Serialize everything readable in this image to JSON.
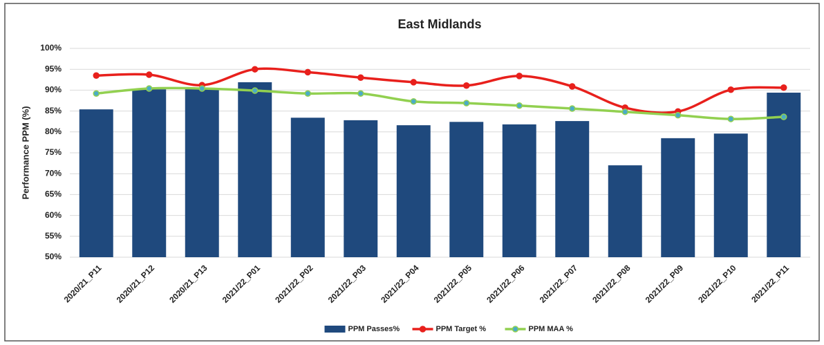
{
  "chart_data": {
    "type": "bar-line",
    "title": "East Midlands",
    "y_label": "Performance PPM (%)",
    "categories": [
      "2020/21_P11",
      "2020/21_P12",
      "2020/21_P13",
      "2021/22_P01",
      "2021/22_P02",
      "2021/22_P03",
      "2021/22_P04",
      "2021/22_P05",
      "2021/22_P06",
      "2021/22_P07",
      "2021/22_P08",
      "2021/22_P09",
      "2021/22_P10",
      "2021/22_P11"
    ],
    "series": [
      {
        "name": "PPM Passes%",
        "type": "bar",
        "color": "#1f497d",
        "values": [
          85.4,
          90.2,
          90.3,
          91.9,
          83.4,
          82.8,
          81.6,
          82.4,
          81.8,
          82.6,
          72.0,
          78.5,
          79.6,
          89.4
        ]
      },
      {
        "name": "PPM Target %",
        "type": "line",
        "color": "#e8201c",
        "marker_color": "#e8201c",
        "values": [
          93.5,
          93.7,
          91.2,
          95.0,
          94.3,
          93.0,
          91.9,
          91.1,
          93.4,
          90.9,
          85.8,
          84.9,
          90.1,
          90.6
        ]
      },
      {
        "name": "PPM MAA %",
        "type": "line",
        "color": "#92d050",
        "marker_color": "#4bacc6",
        "values": [
          89.2,
          90.4,
          90.4,
          89.9,
          89.2,
          89.2,
          87.3,
          86.9,
          86.3,
          85.6,
          84.8,
          84.0,
          83.1,
          83.6
        ]
      }
    ],
    "ylim": [
      50,
      100
    ],
    "yticks": [
      {
        "value": 50,
        "label": "50%"
      },
      {
        "value": 55,
        "label": "55%"
      },
      {
        "value": 60,
        "label": "60%"
      },
      {
        "value": 65,
        "label": "65%"
      },
      {
        "value": 70,
        "label": "70%"
      },
      {
        "value": 75,
        "label": "75%"
      },
      {
        "value": 80,
        "label": "80%"
      },
      {
        "value": 85,
        "label": "85%"
      },
      {
        "value": 90,
        "label": "90%"
      },
      {
        "value": 95,
        "label": "95%"
      },
      {
        "value": 100,
        "label": "100%"
      }
    ],
    "grid": true,
    "legend": "bottom"
  }
}
